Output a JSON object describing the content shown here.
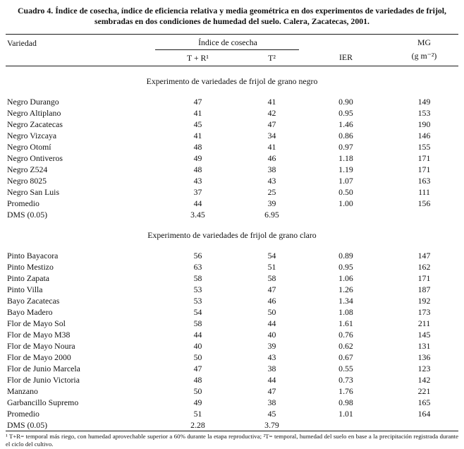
{
  "caption": "Cuadro 4.  Índice de cosecha, índice de eficiencia relativa y media geométrica en dos experimentos de variedades de frijol, sembradas en dos condiciones de humedad del suelo. Calera, Zacatecas, 2001.",
  "header": {
    "variedad": "Variedad",
    "indice_group": "Índice de cosecha",
    "sub_tr": "T + R¹",
    "sub_t": "T²",
    "ier": "IER",
    "mg": "MG",
    "mg_unit": "(g m⁻²)"
  },
  "chart_data": {
    "type": "table",
    "title": "Cuadro 4. Índice de cosecha, índice de eficiencia relativa y media geométrica en dos experimentos de variedades de frijol",
    "columns": [
      "Variedad",
      "Índice de cosecha T + R¹",
      "Índice de cosecha T²",
      "IER",
      "MG (g m⁻²)"
    ]
  },
  "sections": [
    {
      "heading": "Experimento de variedades de frijol de grano negro",
      "rows": [
        {
          "name": "Negro Durango",
          "values": [
            "47",
            "41",
            "0.90",
            "149"
          ]
        },
        {
          "name": "Negro Altiplano",
          "values": [
            "41",
            "42",
            "0.95",
            "153"
          ]
        },
        {
          "name": "Negro Zacatecas",
          "values": [
            "45",
            "47",
            "1.46",
            "190"
          ]
        },
        {
          "name": "Negro Vizcaya",
          "values": [
            "41",
            "34",
            "0.86",
            "146"
          ]
        },
        {
          "name": "Negro Otomí",
          "values": [
            "48",
            "41",
            "0.97",
            "155"
          ]
        },
        {
          "name": "Negro Ontiveros",
          "values": [
            "49",
            "46",
            "1.18",
            "171"
          ]
        },
        {
          "name": "Negro Z524",
          "values": [
            "48",
            "38",
            "1.19",
            "171"
          ]
        },
        {
          "name": "Negro 8025",
          "values": [
            "43",
            "43",
            "1.07",
            "163"
          ]
        },
        {
          "name": "Negro San Luis",
          "values": [
            "37",
            "25",
            "0.50",
            "111"
          ]
        },
        {
          "name": "Promedio",
          "values": [
            "44",
            "39",
            "1.00",
            "156"
          ]
        },
        {
          "name": "DMS (0.05)",
          "values": [
            "3.45",
            "6.95",
            "",
            ""
          ]
        }
      ]
    },
    {
      "heading": "Experimento de variedades de frijol de grano  claro",
      "rows": [
        {
          "name": "Pinto Bayacora",
          "values": [
            "56",
            "54",
            "0.89",
            "147"
          ]
        },
        {
          "name": "Pinto Mestizo",
          "values": [
            "63",
            "51",
            "0.95",
            "162"
          ]
        },
        {
          "name": "Pinto Zapata",
          "values": [
            "58",
            "58",
            "1.06",
            "171"
          ]
        },
        {
          "name": "Pinto Villa",
          "values": [
            "53",
            "47",
            "1.26",
            "187"
          ]
        },
        {
          "name": "Bayo Zacatecas",
          "values": [
            "53",
            "46",
            "1.34",
            "192"
          ]
        },
        {
          "name": "Bayo Madero",
          "values": [
            "54",
            "50",
            "1.08",
            "173"
          ]
        },
        {
          "name": "Flor de Mayo Sol",
          "values": [
            "58",
            "44",
            "1.61",
            "211"
          ]
        },
        {
          "name": "Flor de Mayo M38",
          "values": [
            "44",
            "40",
            "0.76",
            "145"
          ]
        },
        {
          "name": "Flor de Mayo Noura",
          "values": [
            "40",
            "39",
            "0.62",
            "131"
          ]
        },
        {
          "name": "Flor de Mayo 2000",
          "values": [
            "50",
            "43",
            "0.67",
            "136"
          ]
        },
        {
          "name": "Flor de Junio Marcela",
          "values": [
            "47",
            "38",
            "0.55",
            "123"
          ]
        },
        {
          "name": "Flor de Junio Victoria",
          "values": [
            "48",
            "44",
            "0.73",
            "142"
          ]
        },
        {
          "name": "Manzano",
          "values": [
            "50",
            "47",
            "1.76",
            "221"
          ]
        },
        {
          "name": "Garbancillo Supremo",
          "values": [
            "49",
            "38",
            "0.98",
            "165"
          ]
        },
        {
          "name": "Promedio",
          "values": [
            "51",
            "45",
            "1.01",
            "164"
          ]
        },
        {
          "name": "DMS (0.05)",
          "values": [
            "2.28",
            "3.79",
            "",
            ""
          ]
        }
      ]
    }
  ],
  "footnote": "¹ T+R= temporal más riego, con humedad aprovechable superior a 60% durante la etapa reproductiva; ²T= temporal, humedad del suelo en base a la precipitación registrada durante el ciclo del cultivo."
}
